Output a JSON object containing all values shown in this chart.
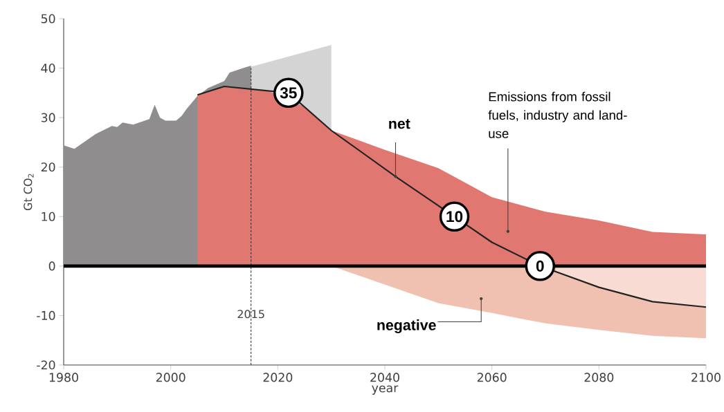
{
  "chart_data": {
    "type": "area",
    "xlabel": "year",
    "ylabel": "Gt CO$_{2}$",
    "xlim": [
      1980,
      2100
    ],
    "ylim": [
      -20,
      50
    ],
    "xticks": [
      1980,
      2000,
      2020,
      2040,
      2060,
      2080,
      2100
    ],
    "yticks": [
      -20,
      -10,
      0,
      10,
      20,
      30,
      40,
      50
    ],
    "grid": false,
    "series": [
      {
        "color": "#d4d4d4",
        "x": [
          2015,
          2030
        ],
        "values": [
          40.3,
          44.7
        ]
      },
      {
        "color": "#8f8d8e",
        "x": [
          1980,
          1982,
          1986,
          1989,
          1990,
          1991,
          1993,
          1996,
          1997,
          1998,
          1999,
          2001,
          2002,
          2003,
          2005,
          2007,
          2010,
          2011,
          2014,
          2015
        ],
        "values": [
          24.4,
          23.7,
          26.7,
          28.3,
          28.1,
          29.0,
          28.6,
          29.7,
          32.6,
          30.0,
          29.4,
          29.4,
          30.3,
          31.8,
          34.4,
          36.0,
          37.4,
          39.1,
          40.2,
          40.5
        ]
      },
      {
        "color": "#e07770",
        "x": [
          2005,
          2010,
          2018,
          2025,
          2030,
          2040,
          2050,
          2060,
          2070,
          2080,
          2090,
          2100
        ],
        "values": [
          34.6,
          36.3,
          35.5,
          32.2,
          27.4,
          23.5,
          19.8,
          13.9,
          11.0,
          9.2,
          6.9,
          6.4
        ]
      },
      {
        "color": "#f0c0b0",
        "x": [
          2030,
          2050,
          2060,
          2070,
          2080,
          2090,
          2100
        ],
        "values": [
          0,
          -7.5,
          -9.5,
          -11.6,
          -12.9,
          -14.1,
          -14.6
        ]
      },
      {
        "color": "#f8dcd3",
        "x": [
          2072,
          2080,
          2090,
          2100
        ],
        "values": [
          -1.2,
          -4.3,
          -7.2,
          -8.3
        ]
      },
      {
        "type": "line",
        "color": "#222222",
        "x": [
          2005,
          2010,
          2022,
          2030,
          2042,
          2053,
          2060,
          2069,
          2080,
          2090,
          2100
        ],
        "values": [
          34.6,
          36.3,
          35,
          27.4,
          18.1,
          10,
          4.8,
          0,
          -4.3,
          -7.2,
          -8.3
        ],
        "value_labels": [
          null,
          null,
          "35",
          null,
          null,
          "10",
          null,
          "0",
          null,
          null,
          null
        ]
      }
    ],
    "ref_lines": [
      {
        "axis": "x",
        "value": 2015,
        "label": "2015",
        "color": "#333333",
        "line_style": "dashed"
      },
      {
        "axis": "y",
        "value": 0,
        "color": "#000000"
      }
    ],
    "annotations": [
      {
        "text": "net",
        "x": 2042,
        "y": 18.1
      },
      {
        "text": "Emissions from fossil fuels, industry and land-use",
        "x": 2063,
        "y": 7
      },
      {
        "text": "negative",
        "x": 2058,
        "y": -6.6
      }
    ]
  }
}
